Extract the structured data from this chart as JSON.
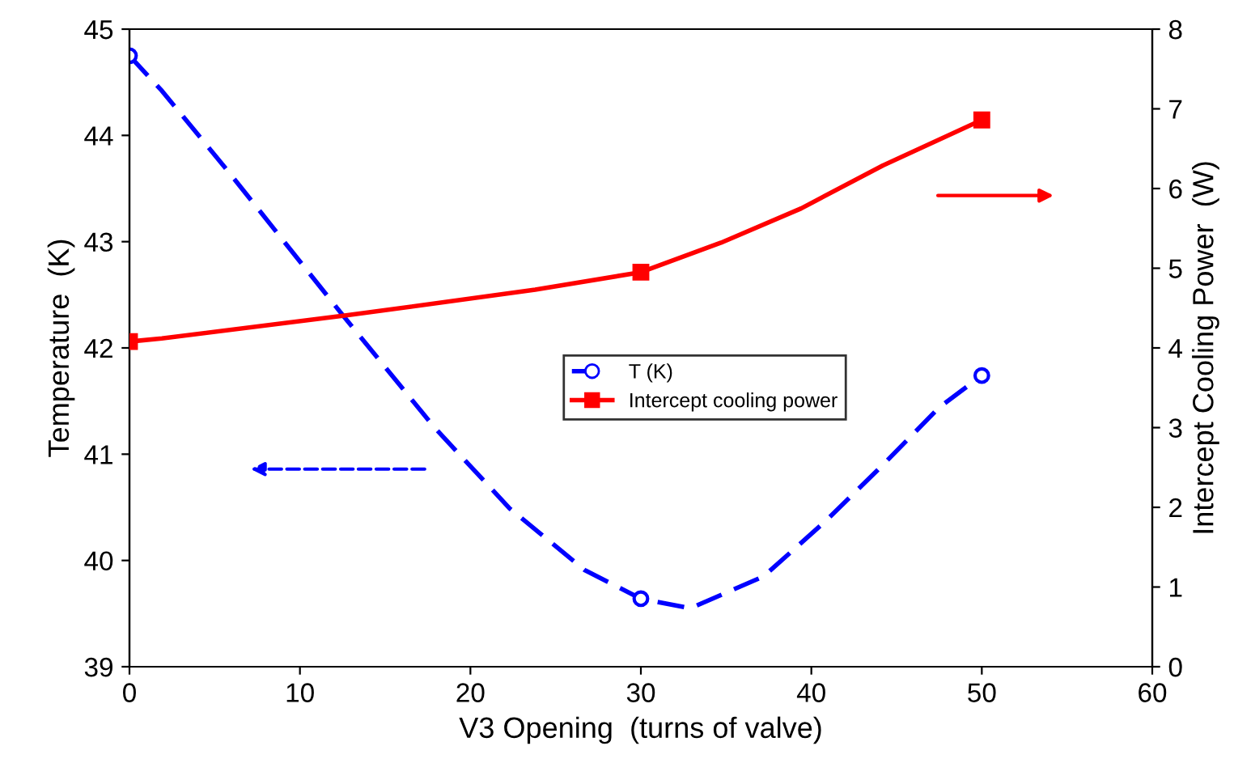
{
  "chart_data": {
    "type": "line",
    "xlabel": "V3 Opening  (turns of valve)",
    "ylabel": "Temperature  (K)",
    "y2label": "Intercept Cooling Power  (W)",
    "xlim": [
      0,
      60
    ],
    "xticks": [
      0,
      10,
      20,
      30,
      40,
      50,
      60
    ],
    "ylim": [
      39,
      45
    ],
    "yticks": [
      39,
      40,
      41,
      42,
      43,
      44,
      45
    ],
    "y2lim": [
      0,
      8
    ],
    "y2ticks": [
      0,
      1,
      2,
      3,
      4,
      5,
      6,
      7,
      8
    ],
    "grid": false,
    "legend": "center",
    "series": [
      {
        "name": "T (K)",
        "color": "#0000ff",
        "x": [
          0,
          1.9,
          5.8,
          12.5,
          17.9,
          22.3,
          26.7,
          30,
          32.9,
          37.2,
          40.9,
          44.2,
          47.5,
          50
        ],
        "values": [
          44.75,
          44.42,
          43.66,
          42.31,
          41.25,
          40.49,
          39.91,
          39.64,
          39.55,
          39.85,
          40.38,
          40.9,
          41.44,
          41.74
        ],
        "marker": "none",
        "line_style": "dashed"
      },
      {
        "type": "scatter",
        "color": "#0000ff",
        "x": [
          0,
          30,
          50
        ],
        "values": [
          44.75,
          39.64,
          41.74
        ],
        "marker": "circle"
      },
      {
        "name": "Intercept cooling power",
        "color": "#ff0000",
        "x": [
          0,
          1.9,
          12.8,
          23.8,
          30,
          34.7,
          39.4,
          44.2,
          50
        ],
        "values": [
          4.08,
          4.12,
          4.41,
          4.73,
          4.95,
          5.32,
          5.75,
          6.29,
          6.86
        ],
        "marker": "none",
        "line_style": "solid",
        "axis": "y2"
      },
      {
        "type": "scatter",
        "color": "#ff0000",
        "x": [
          0,
          30,
          50
        ],
        "values": [
          4.08,
          4.95,
          6.86
        ],
        "marker": "square",
        "axis": "y2"
      }
    ]
  }
}
